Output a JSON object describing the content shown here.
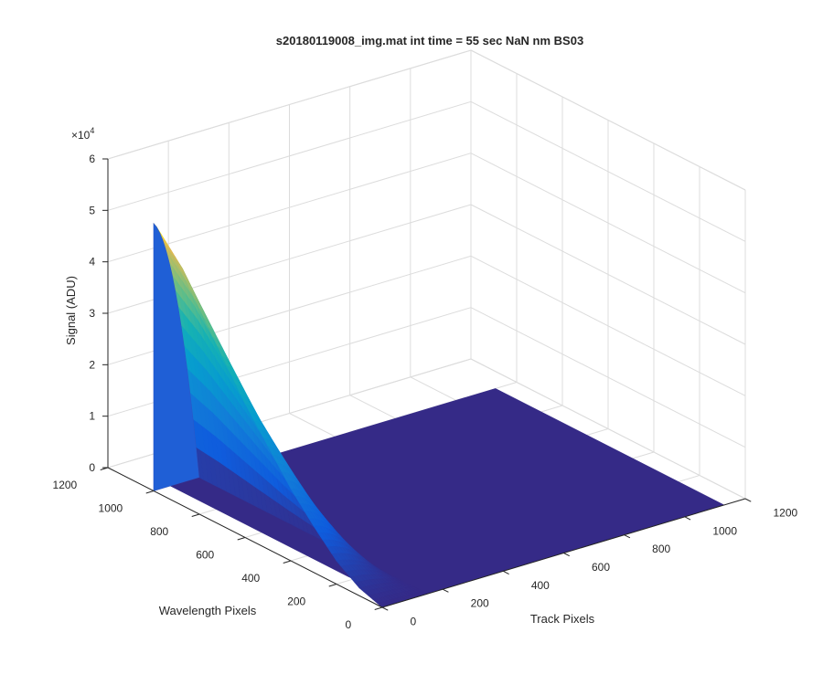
{
  "chart_data": {
    "type": "surface",
    "title": "s20180119008_img.mat int time = 55 sec   NaN nm BS03",
    "xlabel": "Track Pixels",
    "ylabel": "Wavelength Pixels",
    "zlabel": "Signal (ADU)",
    "xlim": [
      0,
      1200
    ],
    "ylim": [
      0,
      1200
    ],
    "zlim": [
      0,
      60000
    ],
    "x_ticks": [
      "0",
      "200",
      "400",
      "600",
      "800",
      "1000",
      "1200"
    ],
    "y_ticks": [
      "0",
      "200",
      "400",
      "600",
      "800",
      "1000",
      "1200"
    ],
    "z_ticks": [
      "0",
      "1",
      "2",
      "3",
      "4",
      "5",
      "6"
    ],
    "z_exponent": "×10",
    "z_exponent_power": "4",
    "grid": true,
    "colormap": "parula",
    "surface": {
      "floor_value": 0,
      "track_range": [
        0,
        150
      ],
      "track_center": 0,
      "wavelength_range": [
        0,
        1000
      ],
      "peak_wavelength": 1000,
      "peak_value": 52000,
      "profile": [
        {
          "wavelength": 0,
          "value": 0
        },
        {
          "wavelength": 100,
          "value": 1500
        },
        {
          "wavelength": 200,
          "value": 4500
        },
        {
          "wavelength": 300,
          "value": 9000
        },
        {
          "wavelength": 400,
          "value": 14000
        },
        {
          "wavelength": 500,
          "value": 20000
        },
        {
          "wavelength": 600,
          "value": 26000
        },
        {
          "wavelength": 700,
          "value": 33000
        },
        {
          "wavelength": 800,
          "value": 40000
        },
        {
          "wavelength": 900,
          "value": 47000
        },
        {
          "wavelength": 1000,
          "value": 52000
        }
      ]
    }
  }
}
